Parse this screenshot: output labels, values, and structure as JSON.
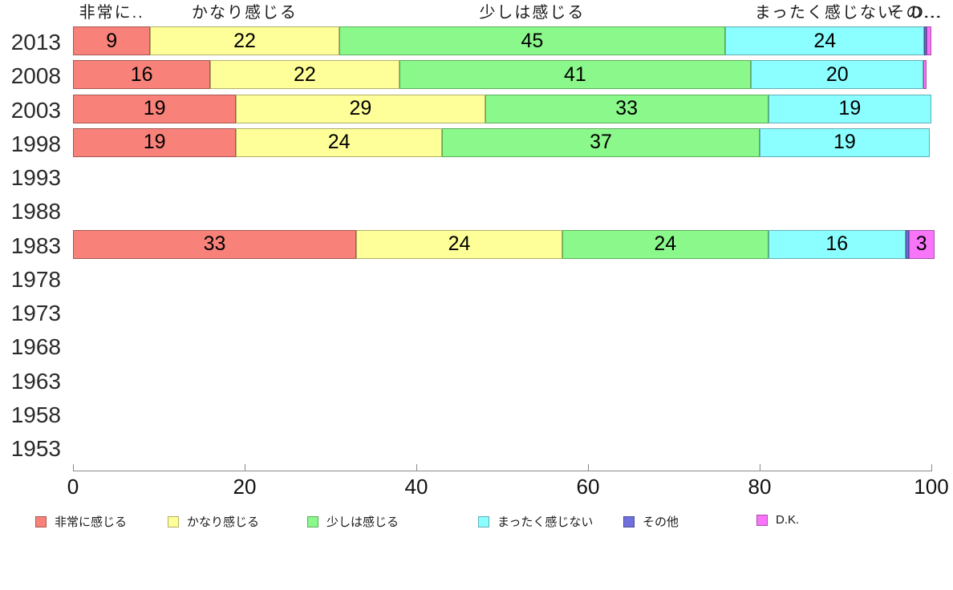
{
  "chart_data": {
    "type": "bar",
    "subtype": "horizontal-stacked",
    "title": "",
    "xlabel": "",
    "ylabel": "",
    "xlim": [
      0,
      100
    ],
    "grid": false,
    "legend_position": "bottom",
    "x_ticks": [
      "0",
      "20",
      "40",
      "60",
      "80",
      "100"
    ],
    "years": [
      "2013",
      "2008",
      "2003",
      "1998",
      "1993",
      "1988",
      "1983",
      "1978",
      "1973",
      "1968",
      "1963",
      "1958",
      "1953"
    ],
    "series": [
      {
        "name": "非常に感じる",
        "color": "#F8827A",
        "border": "#A85750",
        "values": {
          "2013": 9,
          "2008": 16,
          "2003": 19,
          "1998": 19,
          "1983": 33
        }
      },
      {
        "name": "かなり感じる",
        "color": "#FFFF99",
        "border": "#B0B068",
        "values": {
          "2013": 22,
          "2008": 22,
          "2003": 29,
          "1998": 24,
          "1983": 24
        }
      },
      {
        "name": "少しは感じる",
        "color": "#8BF88B",
        "border": "#5BAE5B",
        "values": {
          "2013": 45,
          "2008": 41,
          "2003": 33,
          "1998": 37,
          "1983": 24
        }
      },
      {
        "name": "まったく感じない",
        "color": "#8BFEFF",
        "border": "#5FAFB5",
        "values": {
          "2013": 24,
          "2008": 20,
          "2003": 19,
          "1998": 19,
          "1983": 16
        }
      },
      {
        "name": "その他",
        "color": "#7070DC",
        "border": "#4A4A99",
        "values": {
          "2013": 0,
          "1983": 0
        }
      },
      {
        "name": "D.K.",
        "color": "#F874F8",
        "border": "#A94FA9",
        "values": {
          "2013": 1,
          "2008": 1,
          "1983": 3
        }
      }
    ],
    "top_labels": [
      {
        "text": "非常に..",
        "center_pct": 4.5
      },
      {
        "text": "かなり感じる",
        "center_pct": 20
      },
      {
        "text": "少しは感じる",
        "center_pct": 53.5
      },
      {
        "text": "まったく感じない",
        "center_pct": 87.6
      },
      {
        "text": "その...",
        "center_pct": 98.1
      },
      {
        "text": "D...",
        "center_pct": 99.5
      }
    ],
    "rows": [
      {
        "year": "2013",
        "segments": [
          {
            "s": 0,
            "draw": 9,
            "label": "9"
          },
          {
            "s": 1,
            "draw": 22,
            "label": "22"
          },
          {
            "s": 2,
            "draw": 45,
            "label": "45"
          },
          {
            "s": 3,
            "draw": 23.2,
            "label": "24"
          },
          {
            "s": 4,
            "draw": 0.25,
            "label": ""
          },
          {
            "s": 5,
            "draw": 0.55,
            "label": ""
          }
        ]
      },
      {
        "year": "2008",
        "segments": [
          {
            "s": 0,
            "draw": 16,
            "label": "16"
          },
          {
            "s": 1,
            "draw": 22,
            "label": "22"
          },
          {
            "s": 2,
            "draw": 41,
            "label": "41"
          },
          {
            "s": 3,
            "draw": 20.1,
            "label": "20"
          },
          {
            "s": 5,
            "draw": 0.35,
            "label": ""
          }
        ]
      },
      {
        "year": "2003",
        "segments": [
          {
            "s": 0,
            "draw": 19,
            "label": "19"
          },
          {
            "s": 1,
            "draw": 29,
            "label": "29"
          },
          {
            "s": 2,
            "draw": 33,
            "label": "33"
          },
          {
            "s": 3,
            "draw": 19,
            "label": "19"
          }
        ]
      },
      {
        "year": "1998",
        "segments": [
          {
            "s": 0,
            "draw": 19,
            "label": "19"
          },
          {
            "s": 1,
            "draw": 24,
            "label": "24"
          },
          {
            "s": 2,
            "draw": 37,
            "label": "37"
          },
          {
            "s": 3,
            "draw": 19.8,
            "label": "19"
          }
        ]
      },
      {
        "year": "1983",
        "segments": [
          {
            "s": 0,
            "draw": 33,
            "label": "33"
          },
          {
            "s": 1,
            "draw": 24,
            "label": "24"
          },
          {
            "s": 2,
            "draw": 24,
            "label": "24"
          },
          {
            "s": 3,
            "draw": 16,
            "label": "16"
          },
          {
            "s": 4,
            "draw": 0.35,
            "label": ""
          },
          {
            "s": 5,
            "draw": 3,
            "label": "3"
          }
        ]
      }
    ],
    "legend": [
      "非常に感じる",
      "かなり感じる",
      "少しは感じる",
      "まったく感じない",
      "その他",
      "D.K."
    ]
  }
}
